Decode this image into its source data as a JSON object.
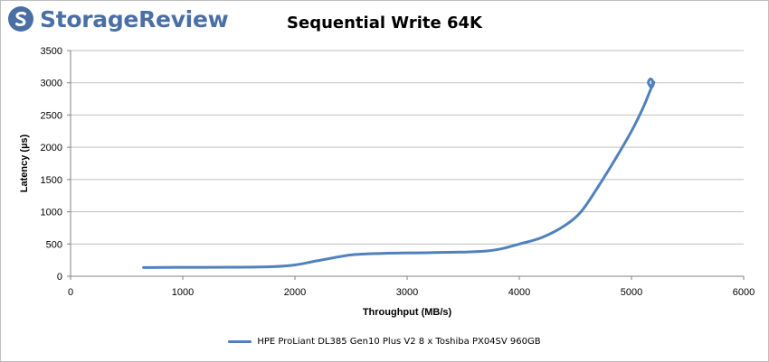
{
  "brand": {
    "name": "StorageReview"
  },
  "chart_data": {
    "type": "line",
    "title": "Sequential Write 64K",
    "xlabel": "Throughput (MB/s)",
    "ylabel": "Latency (µs)",
    "xlim": [
      0,
      6000
    ],
    "ylim": [
      0,
      3500
    ],
    "xticks": [
      0,
      1000,
      2000,
      3000,
      4000,
      5000,
      6000
    ],
    "yticks": [
      0,
      500,
      1000,
      1500,
      2000,
      2500,
      3000,
      3500
    ],
    "grid": true,
    "legend_position": "bottom",
    "series": [
      {
        "name": "HPE ProLiant DL385 Gen10 Plus V2 8 x Toshiba PX04SV 960GB",
        "color": "#4f81bd",
        "x": [
          650,
          1000,
          1500,
          1800,
          2000,
          2200,
          2500,
          2800,
          3200,
          3500,
          3700,
          3850,
          4000,
          4200,
          4400,
          4550,
          4700,
          4850,
          5000,
          5100,
          5160,
          5190,
          5170,
          5150,
          5180,
          5200,
          5180
        ],
        "y": [
          135,
          138,
          140,
          148,
          175,
          240,
          330,
          355,
          365,
          375,
          390,
          430,
          500,
          600,
          780,
          1000,
          1380,
          1800,
          2250,
          2600,
          2850,
          3000,
          3060,
          3000,
          2930,
          3010,
          2960
        ]
      }
    ]
  }
}
